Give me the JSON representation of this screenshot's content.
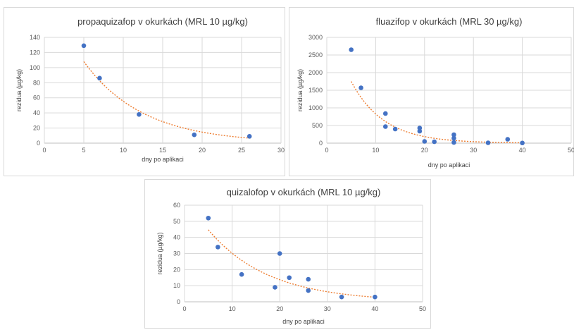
{
  "chart_data": [
    {
      "type": "scatter",
      "title": "propaquizafop v okurkách (MRL 10 µg/kg)",
      "xlabel": "dny po aplikaci",
      "ylabel": "rezidua (µg/kg)",
      "xlim": [
        0,
        30
      ],
      "ylim": [
        0,
        140
      ],
      "xticks": [
        "0",
        "5",
        "10",
        "15",
        "20",
        "25",
        "30"
      ],
      "yticks": [
        "0",
        "20",
        "40",
        "60",
        "80",
        "100",
        "120",
        "140"
      ],
      "grid": true,
      "point_color": "#4472c4",
      "trend_color": "#ed7d31",
      "trendline": "exponential",
      "points": [
        {
          "x": 5,
          "y": 129
        },
        {
          "x": 7,
          "y": 86
        },
        {
          "x": 12,
          "y": 38
        },
        {
          "x": 19,
          "y": 11
        },
        {
          "x": 26,
          "y": 9
        }
      ]
    },
    {
      "type": "scatter",
      "title": "fluazifop v okurkách (MRL 30 µg/kg)",
      "xlabel": "dny po aplikaci",
      "ylabel": "rezidua (µg/kg)",
      "xlim": [
        0,
        50
      ],
      "ylim": [
        0,
        3000
      ],
      "xticks": [
        "0",
        "10",
        "20",
        "30",
        "40",
        "50"
      ],
      "yticks": [
        "0",
        "500",
        "1000",
        "1500",
        "2000",
        "2500",
        "3000"
      ],
      "grid": true,
      "point_color": "#4472c4",
      "trend_color": "#ed7d31",
      "trendline": "exponential",
      "points": [
        {
          "x": 5,
          "y": 2650
        },
        {
          "x": 7,
          "y": 1570
        },
        {
          "x": 12,
          "y": 840
        },
        {
          "x": 12,
          "y": 470
        },
        {
          "x": 14,
          "y": 400
        },
        {
          "x": 19,
          "y": 430
        },
        {
          "x": 19,
          "y": 340
        },
        {
          "x": 20,
          "y": 50
        },
        {
          "x": 22,
          "y": 40
        },
        {
          "x": 26,
          "y": 240
        },
        {
          "x": 26,
          "y": 140
        },
        {
          "x": 26,
          "y": 20
        },
        {
          "x": 33,
          "y": 10
        },
        {
          "x": 37,
          "y": 110
        },
        {
          "x": 40,
          "y": 5
        }
      ]
    },
    {
      "type": "scatter",
      "title": "quizalofop  v okurkách (MRL 10 µg/kg)",
      "xlabel": "dny po aplikaci",
      "ylabel": "rezidua (µg/kg)",
      "xlim": [
        0,
        50
      ],
      "ylim": [
        0,
        60
      ],
      "xticks": [
        "0",
        "10",
        "20",
        "30",
        "40",
        "50"
      ],
      "yticks": [
        "0",
        "10",
        "20",
        "30",
        "40",
        "50",
        "60"
      ],
      "grid": true,
      "point_color": "#4472c4",
      "trend_color": "#ed7d31",
      "trendline": "exponential",
      "points": [
        {
          "x": 5,
          "y": 52
        },
        {
          "x": 7,
          "y": 34
        },
        {
          "x": 12,
          "y": 17
        },
        {
          "x": 19,
          "y": 9
        },
        {
          "x": 20,
          "y": 30
        },
        {
          "x": 22,
          "y": 15
        },
        {
          "x": 26,
          "y": 14
        },
        {
          "x": 26,
          "y": 7
        },
        {
          "x": 33,
          "y": 3
        },
        {
          "x": 40,
          "y": 3
        }
      ]
    }
  ]
}
